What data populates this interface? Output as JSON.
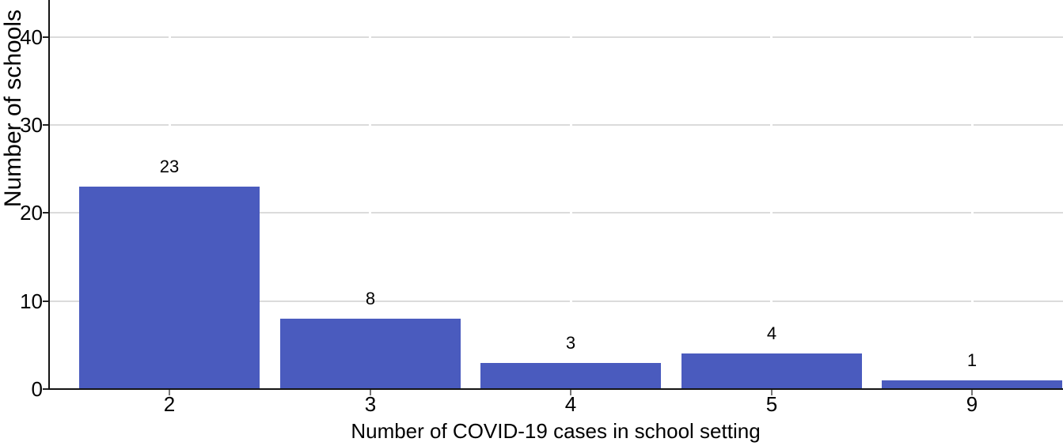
{
  "chart_data": {
    "type": "bar",
    "categories": [
      "2",
      "3",
      "4",
      "5",
      "9"
    ],
    "values": [
      23,
      8,
      3,
      4,
      1
    ],
    "data_labels": [
      "23",
      "8",
      "3",
      "4",
      "1"
    ],
    "title": "",
    "xlabel": "Number of COVID-19 cases in school setting",
    "ylabel": "Number of schools",
    "yticks": [
      0,
      10,
      20,
      30,
      40
    ],
    "ylim": [
      0,
      44.2
    ],
    "grid": "horizontal-major-only",
    "legend": "none",
    "colors": {
      "bar_fill": "#4A5BBE",
      "gridline": "#DBDBDB",
      "axis_line": "#141414",
      "y_tick": "#222222",
      "x_tick": "#777777",
      "text": "#000000",
      "background": "#FFFFFF",
      "category_vline": "#FFFFFF"
    }
  }
}
